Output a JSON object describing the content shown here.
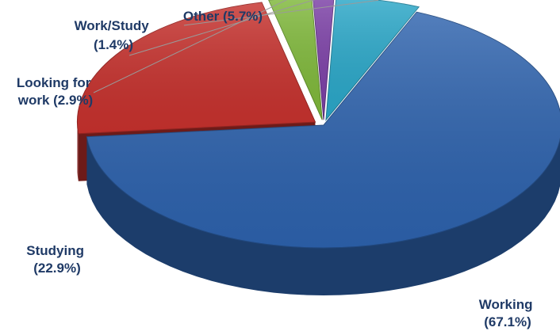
{
  "chart_data": {
    "type": "pie",
    "title": "",
    "slices": [
      {
        "label": "Working",
        "value": 67.1,
        "display": "(67.1%)",
        "color": "#2d62ad"
      },
      {
        "label": "Studying",
        "value": 22.9,
        "display": "(22.9%)",
        "color": "#c6312d"
      },
      {
        "label": "Looking for work",
        "value": 2.9,
        "display": "work (2.9%)",
        "color": "#7fb83a"
      },
      {
        "label": "Work/Study",
        "value": 1.4,
        "display": "(1.4%)",
        "color": "#7b3fa6"
      },
      {
        "label": "Other",
        "value": 5.7,
        "display": "Other (5.7%)",
        "color": "#2aa7c8"
      }
    ],
    "label_lines": {
      "working": [
        "Working",
        "(67.1%)"
      ],
      "studying": [
        "Studying",
        "(22.9%)"
      ],
      "looking_for_work": [
        "Looking for",
        "work (2.9%)"
      ],
      "work_study": [
        "Work/Study",
        "(1.4%)"
      ],
      "other": [
        "Other (5.7%)"
      ]
    },
    "style": "3d-exploded",
    "legend": "none"
  }
}
